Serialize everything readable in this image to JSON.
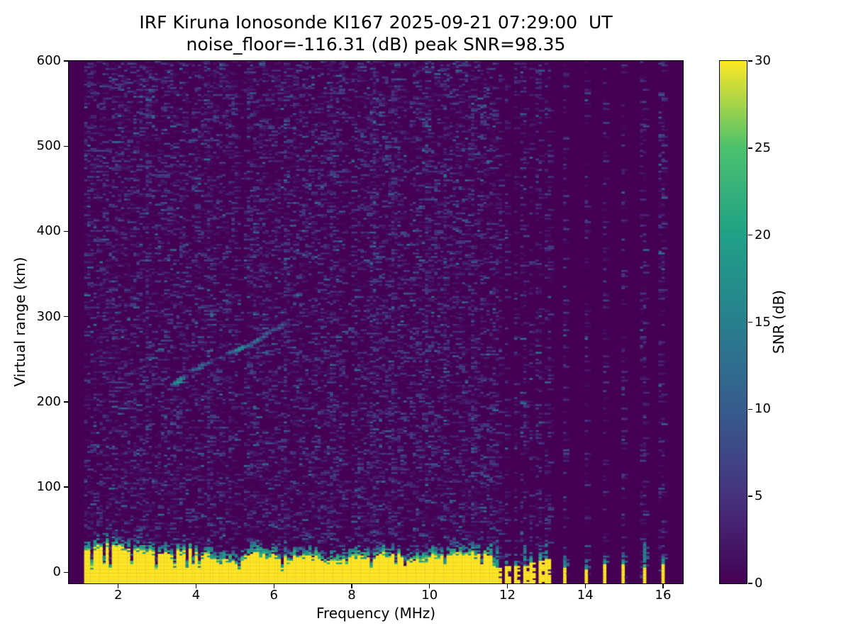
{
  "title": {
    "line1": "IRF Kiruna Ionosonde KI167 2025-09-21 07:29:00  UT",
    "line2": "noise_floor=-116.31 (dB) peak SNR=98.35"
  },
  "chart_data": {
    "type": "heatmap",
    "title": "IRF Kiruna Ionosonde KI167 2025-09-21 07:29:00  UT",
    "subtitle": "noise_floor=-116.31 (dB) peak SNR=98.35",
    "station": "IRF Kiruna Ionosonde KI167",
    "timestamp_ut": "2025-09-21 07:29:00",
    "noise_floor_db": -116.31,
    "peak_snr_db": 98.35,
    "xlabel": "Frequency (MHz)",
    "ylabel": "Virtual range (km)",
    "colorbar_label": "SNR (dB)",
    "xlim": [
      0.73,
      16.51
    ],
    "ylim": [
      -13,
      600
    ],
    "clim": [
      0,
      30
    ],
    "xticks": [
      2,
      4,
      6,
      8,
      10,
      12,
      14,
      16
    ],
    "yticks": [
      0,
      100,
      200,
      300,
      400,
      500,
      600
    ],
    "colorbar_ticks": [
      0,
      5,
      10,
      15,
      20,
      25,
      30
    ],
    "colormap": "viridis",
    "colormap_stops": [
      "#440154",
      "#46327e",
      "#365c8d",
      "#277f8e",
      "#1fa187",
      "#4ac16d",
      "#fde725"
    ],
    "sweep": {
      "start_mhz": 1.15,
      "continuous_until_mhz": 11.68,
      "discrete_freqs_mhz": [
        11.77,
        11.98,
        12.22,
        12.41,
        12.59,
        12.81,
        13.03,
        13.48,
        14.03,
        14.48,
        14.96,
        15.49,
        15.96
      ]
    },
    "ground_band": {
      "freq_start_mhz": 1.15,
      "freq_end_mhz": 11.68,
      "solid_top_km_min": 14,
      "solid_top_km_max": 34,
      "fringe_km": 12,
      "value_db": 30
    },
    "noise": {
      "background_db": 0,
      "speckle_density": 0.4,
      "speckle_max_db": 7.5,
      "enhanced_columns_mhz": [
        2.75,
        4.3,
        5.35,
        6.3,
        7.45,
        8.55,
        9.05,
        9.9,
        10.4,
        11.1
      ],
      "quiet_columns_mhz": [
        3.85,
        5.15,
        7.9,
        9.45
      ]
    },
    "echo_trace": [
      [
        3.42,
        220,
        16
      ],
      [
        3.5,
        224,
        21
      ],
      [
        3.58,
        227,
        18
      ],
      [
        3.95,
        237,
        13
      ],
      [
        4.08,
        240,
        15
      ],
      [
        4.2,
        243,
        14
      ],
      [
        4.32,
        246,
        12
      ],
      [
        4.62,
        252,
        10
      ],
      [
        4.88,
        257,
        14
      ],
      [
        5.0,
        259,
        17
      ],
      [
        5.1,
        261,
        19
      ],
      [
        5.22,
        263,
        18
      ],
      [
        5.35,
        266,
        15
      ],
      [
        5.48,
        269,
        14
      ],
      [
        5.6,
        272,
        15
      ],
      [
        5.72,
        276,
        13
      ],
      [
        5.85,
        280,
        14
      ],
      [
        5.97,
        284,
        12
      ],
      [
        6.1,
        287,
        13
      ],
      [
        6.22,
        291,
        12
      ],
      [
        6.25,
        304,
        10
      ],
      [
        6.6,
        326,
        14
      ]
    ]
  }
}
